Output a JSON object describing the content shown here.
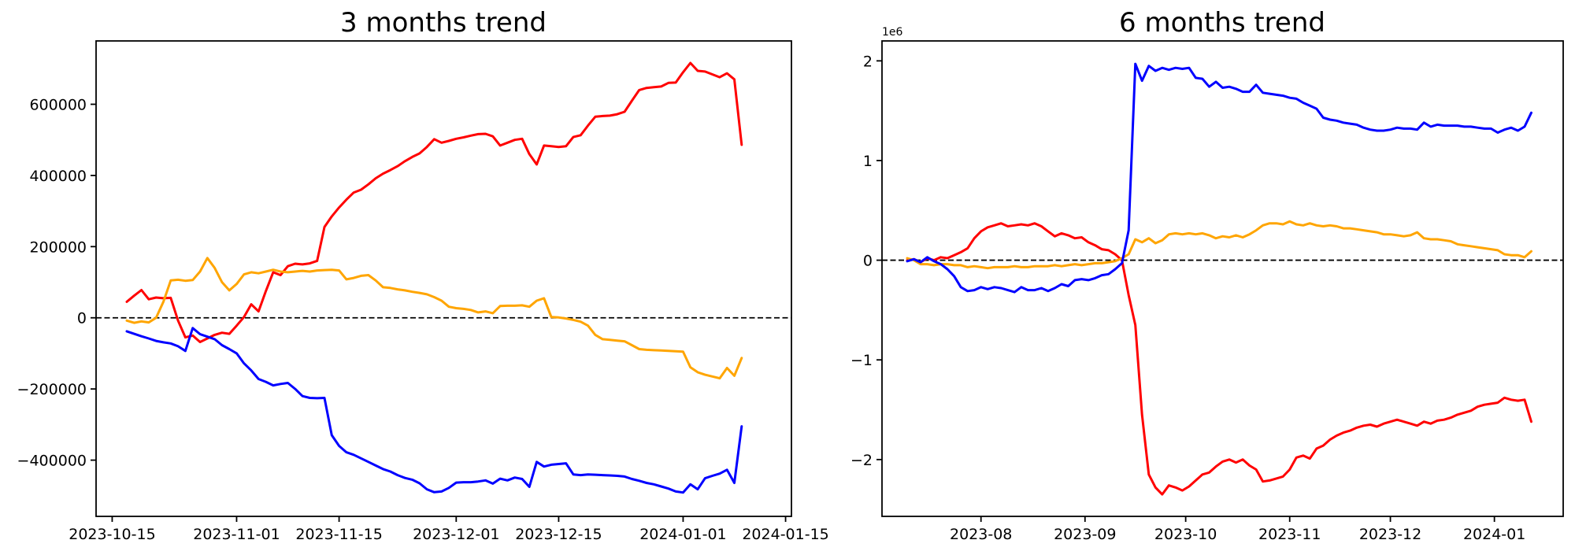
{
  "figure": {
    "background": "#ffffff",
    "left_chart_title": "3 months trend",
    "right_chart_title": "6 months trend"
  },
  "chart_data": [
    {
      "type": "line",
      "title": "3 months trend",
      "legend": "none",
      "grid": false,
      "zero_line": true,
      "series_colors": {
        "red": "#ff0000",
        "orange": "#ffa500",
        "blue": "#0000ff"
      },
      "x_axis": {
        "unit": "date",
        "tick_labels": [
          "2023-10-15",
          "2023-11-01",
          "2023-11-15",
          "2023-12-01",
          "2023-12-15",
          "2024-01-01",
          "2024-01-15"
        ],
        "tick_days": [
          0,
          17,
          31,
          47,
          61,
          78,
          92
        ],
        "xlim_days": [
          -2.2,
          92.8
        ]
      },
      "y_axis": {
        "tick_labels": [
          "600000",
          "400000",
          "200000",
          "0",
          "−200000",
          "−400000"
        ],
        "tick_values": [
          600,
          400,
          200,
          0,
          -200,
          -400
        ],
        "ylim": [
          -558,
          778
        ],
        "values_scale": 1000,
        "offset_label": ""
      },
      "x_start_day": 2,
      "x_step_days": 1,
      "dates": [
        "2023-10-17",
        "2023-10-18",
        "2023-10-19",
        "2023-10-20",
        "2023-10-21",
        "2023-10-22",
        "2023-10-23",
        "2023-10-24",
        "2023-10-25",
        "2023-10-26",
        "2023-10-27",
        "2023-10-28",
        "2023-10-29",
        "2023-10-30",
        "2023-10-31",
        "2023-11-01",
        "2023-11-02",
        "2023-11-03",
        "2023-11-04",
        "2023-11-05",
        "2023-11-06",
        "2023-11-07",
        "2023-11-08",
        "2023-11-09",
        "2023-11-10",
        "2023-11-11",
        "2023-11-12",
        "2023-11-13",
        "2023-11-14",
        "2023-11-15",
        "2023-11-16",
        "2023-11-17",
        "2023-11-18",
        "2023-11-19",
        "2023-11-20",
        "2023-11-21",
        "2023-11-22",
        "2023-11-23",
        "2023-11-24",
        "2023-11-25",
        "2023-11-26",
        "2023-11-27",
        "2023-11-28",
        "2023-11-29",
        "2023-11-30",
        "2023-12-01",
        "2023-12-02",
        "2023-12-03",
        "2023-12-04",
        "2023-12-05",
        "2023-12-06",
        "2023-12-07",
        "2023-12-08",
        "2023-12-09",
        "2023-12-10",
        "2023-12-11",
        "2023-12-12",
        "2023-12-13",
        "2023-12-14",
        "2023-12-15",
        "2023-12-16",
        "2023-12-17",
        "2023-12-18",
        "2023-12-19",
        "2023-12-20",
        "2023-12-21",
        "2023-12-22",
        "2023-12-23",
        "2023-12-24",
        "2023-12-25",
        "2023-12-26",
        "2023-12-27",
        "2023-12-28",
        "2023-12-29",
        "2023-12-30",
        "2023-12-31",
        "2024-01-01",
        "2024-01-02",
        "2024-01-03",
        "2024-01-04",
        "2024-01-05",
        "2024-01-06",
        "2024-01-07",
        "2024-01-08",
        "2024-01-09"
      ],
      "series": [
        {
          "name": "red",
          "color": "#ff0000",
          "values": [
            45,
            62,
            78,
            52,
            57,
            55,
            56,
            -8,
            -55,
            -50,
            -68,
            -58,
            -48,
            -42,
            -45,
            -22,
            2,
            38,
            18,
            75,
            128,
            120,
            145,
            152,
            150,
            153,
            160,
            255,
            285,
            310,
            332,
            352,
            360,
            375,
            392,
            405,
            415,
            426,
            440,
            452,
            462,
            480,
            502,
            492,
            497,
            503,
            507,
            512,
            516,
            517,
            510,
            484,
            492,
            500,
            503,
            460,
            431,
            484,
            482,
            480,
            482,
            508,
            513,
            540,
            565,
            567,
            568,
            572,
            579,
            610,
            640,
            646,
            648,
            650,
            660,
            661,
            690,
            716,
            694,
            692,
            684,
            676,
            687,
            670,
            486
          ]
        },
        {
          "name": "orange",
          "color": "#ffa500",
          "values": [
            -8,
            -14,
            -10,
            -13,
            0,
            45,
            105,
            107,
            104,
            106,
            130,
            168,
            140,
            100,
            77,
            95,
            122,
            128,
            125,
            130,
            135,
            130,
            128,
            130,
            132,
            130,
            133,
            134,
            135,
            133,
            108,
            112,
            118,
            120,
            105,
            86,
            84,
            80,
            77,
            73,
            70,
            66,
            58,
            48,
            31,
            27,
            25,
            22,
            15,
            18,
            13,
            33,
            34,
            34,
            35,
            31,
            48,
            55,
            2,
            1,
            -2,
            -6,
            -11,
            -22,
            -48,
            -60,
            -62,
            -64,
            -66,
            -77,
            -88,
            -90,
            -91,
            -92,
            -93,
            -94,
            -95,
            -139,
            -153,
            -160,
            -165,
            -170,
            -141,
            -163,
            -113
          ]
        },
        {
          "name": "blue",
          "color": "#0000ff",
          "values": [
            -38,
            -45,
            -52,
            -58,
            -65,
            -69,
            -72,
            -80,
            -93,
            -29,
            -46,
            -53,
            -60,
            -77,
            -88,
            -100,
            -128,
            -148,
            -172,
            -180,
            -190,
            -186,
            -183,
            -200,
            -220,
            -225,
            -226,
            -225,
            -330,
            -360,
            -378,
            -385,
            -395,
            -405,
            -415,
            -425,
            -432,
            -442,
            -450,
            -455,
            -465,
            -482,
            -490,
            -488,
            -478,
            -463,
            -462,
            -462,
            -460,
            -457,
            -466,
            -452,
            -457,
            -449,
            -453,
            -475,
            -405,
            -418,
            -413,
            -411,
            -409,
            -440,
            -442,
            -440,
            -441,
            -442,
            -443,
            -444,
            -446,
            -453,
            -458,
            -464,
            -468,
            -474,
            -480,
            -488,
            -491,
            -468,
            -482,
            -451,
            -444,
            -438,
            -427,
            -464,
            -305
          ]
        }
      ]
    },
    {
      "type": "line",
      "title": "6 months trend",
      "legend": "none",
      "grid": false,
      "zero_line": true,
      "series_colors": {
        "red": "#ff0000",
        "orange": "#ffa500",
        "blue": "#0000ff"
      },
      "x_axis": {
        "unit": "date",
        "tick_labels": [
          "2023-08",
          "2023-09",
          "2023-10",
          "2023-11",
          "2023-12",
          "2024-01"
        ],
        "tick_days": [
          31,
          62,
          92,
          123,
          153,
          184
        ],
        "xlim_days": [
          1.5,
          204.5
        ]
      },
      "y_axis": {
        "tick_labels": [
          "2",
          "1",
          "0",
          "−1",
          "−2"
        ],
        "tick_values": [
          2,
          1,
          0,
          -1,
          -2
        ],
        "ylim": [
          -2.57,
          2.2
        ],
        "values_scale": 1000000,
        "offset_label": "1e6"
      },
      "x_start_day": 9,
      "x_step_days": 2,
      "dates": [
        "2023-07-10",
        "2023-07-12",
        "2023-07-14",
        "2023-07-16",
        "2023-07-18",
        "2023-07-20",
        "2023-07-22",
        "2023-07-24",
        "2023-07-26",
        "2023-07-28",
        "2023-07-30",
        "2023-08-01",
        "2023-08-03",
        "2023-08-05",
        "2023-08-07",
        "2023-08-09",
        "2023-08-11",
        "2023-08-13",
        "2023-08-15",
        "2023-08-17",
        "2023-08-19",
        "2023-08-21",
        "2023-08-23",
        "2023-08-25",
        "2023-08-27",
        "2023-08-29",
        "2023-08-31",
        "2023-09-02",
        "2023-09-04",
        "2023-09-06",
        "2023-09-08",
        "2023-09-10",
        "2023-09-12",
        "2023-09-14",
        "2023-09-16",
        "2023-09-18",
        "2023-09-20",
        "2023-09-22",
        "2023-09-24",
        "2023-09-26",
        "2023-09-28",
        "2023-09-30",
        "2023-10-02",
        "2023-10-04",
        "2023-10-06",
        "2023-10-08",
        "2023-10-10",
        "2023-10-12",
        "2023-10-14",
        "2023-10-16",
        "2023-10-18",
        "2023-10-20",
        "2023-10-22",
        "2023-10-24",
        "2023-10-26",
        "2023-10-28",
        "2023-10-30",
        "2023-11-01",
        "2023-11-03",
        "2023-11-05",
        "2023-11-07",
        "2023-11-09",
        "2023-11-11",
        "2023-11-13",
        "2023-11-15",
        "2023-11-17",
        "2023-11-19",
        "2023-11-21",
        "2023-11-23",
        "2023-11-25",
        "2023-11-27",
        "2023-11-29",
        "2023-12-01",
        "2023-12-03",
        "2023-12-05",
        "2023-12-07",
        "2023-12-09",
        "2023-12-11",
        "2023-12-13",
        "2023-12-15",
        "2023-12-17",
        "2023-12-19",
        "2023-12-21",
        "2023-12-23",
        "2023-12-25",
        "2023-12-27",
        "2023-12-29",
        "2023-12-31",
        "2024-01-02",
        "2024-01-04",
        "2024-01-06",
        "2024-01-08",
        "2024-01-10",
        "2024-01-12"
      ],
      "series": [
        {
          "name": "red",
          "color": "#ff0000",
          "values": [
            0.0,
            0.01,
            -0.02,
            0.02,
            0.0,
            0.03,
            0.02,
            0.05,
            0.08,
            0.12,
            0.22,
            0.29,
            0.33,
            0.35,
            0.37,
            0.34,
            0.35,
            0.36,
            0.35,
            0.37,
            0.34,
            0.29,
            0.24,
            0.27,
            0.25,
            0.22,
            0.23,
            0.18,
            0.15,
            0.11,
            0.1,
            0.06,
            0.0,
            -0.35,
            -0.65,
            -1.55,
            -2.15,
            -2.28,
            -2.35,
            -2.26,
            -2.28,
            -2.31,
            -2.27,
            -2.21,
            -2.15,
            -2.13,
            -2.07,
            -2.02,
            -2.0,
            -2.03,
            -2.0,
            -2.06,
            -2.1,
            -2.22,
            -2.21,
            -2.19,
            -2.17,
            -2.1,
            -1.98,
            -1.96,
            -1.99,
            -1.89,
            -1.86,
            -1.8,
            -1.76,
            -1.73,
            -1.71,
            -1.68,
            -1.66,
            -1.65,
            -1.67,
            -1.64,
            -1.62,
            -1.6,
            -1.62,
            -1.64,
            -1.66,
            -1.62,
            -1.64,
            -1.61,
            -1.6,
            -1.58,
            -1.55,
            -1.53,
            -1.51,
            -1.47,
            -1.45,
            -1.44,
            -1.43,
            -1.38,
            -1.4,
            -1.41,
            -1.4,
            -1.62
          ]
        },
        {
          "name": "orange",
          "color": "#ffa500",
          "values": [
            0.02,
            0.0,
            -0.04,
            -0.04,
            -0.05,
            -0.04,
            -0.04,
            -0.05,
            -0.05,
            -0.07,
            -0.06,
            -0.07,
            -0.08,
            -0.07,
            -0.07,
            -0.07,
            -0.06,
            -0.07,
            -0.07,
            -0.06,
            -0.06,
            -0.06,
            -0.05,
            -0.06,
            -0.05,
            -0.04,
            -0.05,
            -0.04,
            -0.03,
            -0.03,
            -0.02,
            -0.01,
            0.02,
            0.06,
            0.21,
            0.18,
            0.22,
            0.17,
            0.2,
            0.26,
            0.27,
            0.26,
            0.27,
            0.26,
            0.27,
            0.25,
            0.22,
            0.24,
            0.23,
            0.25,
            0.23,
            0.26,
            0.3,
            0.35,
            0.37,
            0.37,
            0.36,
            0.39,
            0.36,
            0.35,
            0.37,
            0.35,
            0.34,
            0.35,
            0.34,
            0.32,
            0.32,
            0.31,
            0.3,
            0.29,
            0.28,
            0.26,
            0.26,
            0.25,
            0.24,
            0.25,
            0.28,
            0.22,
            0.21,
            0.21,
            0.2,
            0.19,
            0.16,
            0.15,
            0.14,
            0.13,
            0.12,
            0.11,
            0.1,
            0.06,
            0.05,
            0.05,
            0.03,
            0.09
          ]
        },
        {
          "name": "blue",
          "color": "#0000ff",
          "values": [
            -0.01,
            0.01,
            -0.02,
            0.03,
            -0.01,
            -0.04,
            -0.09,
            -0.16,
            -0.27,
            -0.31,
            -0.3,
            -0.27,
            -0.29,
            -0.27,
            -0.28,
            -0.3,
            -0.32,
            -0.27,
            -0.3,
            -0.3,
            -0.28,
            -0.31,
            -0.28,
            -0.24,
            -0.26,
            -0.2,
            -0.19,
            -0.2,
            -0.18,
            -0.15,
            -0.14,
            -0.09,
            -0.03,
            0.3,
            1.97,
            1.8,
            1.95,
            1.9,
            1.93,
            1.91,
            1.93,
            1.92,
            1.93,
            1.83,
            1.82,
            1.74,
            1.79,
            1.73,
            1.74,
            1.72,
            1.69,
            1.69,
            1.76,
            1.68,
            1.67,
            1.66,
            1.65,
            1.63,
            1.62,
            1.58,
            1.55,
            1.52,
            1.43,
            1.41,
            1.4,
            1.38,
            1.37,
            1.36,
            1.33,
            1.31,
            1.3,
            1.3,
            1.31,
            1.33,
            1.32,
            1.32,
            1.31,
            1.38,
            1.34,
            1.36,
            1.35,
            1.35,
            1.35,
            1.34,
            1.34,
            1.33,
            1.32,
            1.32,
            1.28,
            1.31,
            1.33,
            1.3,
            1.34,
            1.48
          ]
        }
      ]
    }
  ]
}
